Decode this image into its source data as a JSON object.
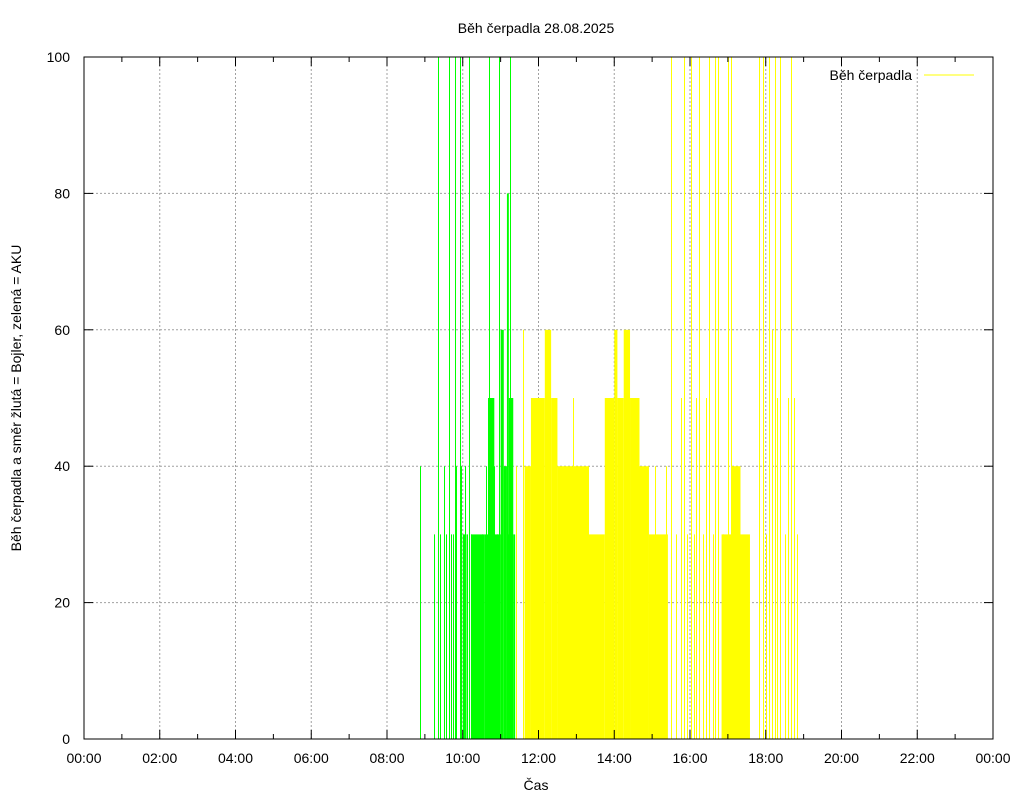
{
  "chart_data": {
    "type": "bar",
    "title": "Běh čerpadla 28.08.2025",
    "xlabel": "Čas",
    "ylabel": "Běh čerpadla a směr žlutá = Bojler, zelená = AKU",
    "xlim": [
      "00:00",
      "24:00"
    ],
    "ylim": [
      0,
      100
    ],
    "x_ticks": [
      "00:00",
      "02:00",
      "04:00",
      "06:00",
      "08:00",
      "10:00",
      "12:00",
      "14:00",
      "16:00",
      "18:00",
      "20:00",
      "22:00",
      "00:00"
    ],
    "y_ticks": [
      "0",
      "20",
      "40",
      "60",
      "80",
      "100"
    ],
    "grid": true,
    "legend": {
      "position": "top-right",
      "entries": [
        {
          "label": "Běh čerpadla",
          "color": "#ffff00"
        }
      ]
    },
    "series": [
      {
        "color": "#00ff00",
        "spikes": [
          [
            "08:53",
            40
          ],
          [
            "09:15",
            30
          ],
          [
            "09:21",
            100
          ],
          [
            "09:24",
            30
          ],
          [
            "09:30",
            40
          ],
          [
            "09:33",
            30
          ],
          [
            "09:38",
            100
          ],
          [
            "09:41",
            30
          ],
          [
            "09:45",
            30
          ],
          [
            "09:47",
            100
          ],
          [
            "09:50",
            40
          ],
          [
            "09:55",
            100
          ],
          [
            "09:58",
            40
          ],
          [
            "10:00",
            30
          ],
          [
            "10:03",
            40
          ],
          [
            "10:06",
            30
          ],
          [
            "10:10",
            100
          ],
          [
            "10:13",
            30
          ],
          [
            "10:31",
            30
          ],
          [
            "10:37",
            40
          ],
          [
            "10:42",
            100
          ],
          [
            "10:44",
            30
          ],
          [
            "10:50",
            40
          ],
          [
            "10:54",
            30
          ],
          [
            "10:58",
            100
          ],
          [
            "11:00",
            30
          ],
          [
            "11:12",
            30
          ],
          [
            "11:15",
            100
          ],
          [
            "11:18",
            50
          ]
        ],
        "blocks": [
          [
            "10:00",
            "10:06",
            30
          ],
          [
            "10:13",
            "10:35",
            30
          ],
          [
            "10:35",
            "10:40",
            30
          ],
          [
            "10:40",
            "10:50",
            50
          ],
          [
            "10:50",
            "11:00",
            30
          ],
          [
            "11:00",
            "11:05",
            60
          ],
          [
            "11:05",
            "11:10",
            40
          ],
          [
            "11:10",
            "11:13",
            80
          ],
          [
            "11:13",
            "11:20",
            50
          ],
          [
            "11:20",
            "11:23",
            30
          ]
        ]
      },
      {
        "color": "#ffff00",
        "spikes": [
          [
            "11:25",
            40
          ],
          [
            "11:35",
            60
          ],
          [
            "11:40",
            30
          ],
          [
            "11:45",
            40
          ],
          [
            "12:55",
            50
          ],
          [
            "13:00",
            40
          ],
          [
            "15:05",
            40
          ],
          [
            "15:22",
            40
          ],
          [
            "15:30",
            100
          ],
          [
            "15:38",
            30
          ],
          [
            "15:45",
            50
          ],
          [
            "15:50",
            100
          ],
          [
            "15:55",
            30
          ],
          [
            "16:02",
            100
          ],
          [
            "16:07",
            30
          ],
          [
            "16:10",
            50
          ],
          [
            "16:15",
            100
          ],
          [
            "16:20",
            30
          ],
          [
            "16:25",
            50
          ],
          [
            "16:30",
            100
          ],
          [
            "16:36",
            30
          ],
          [
            "16:40",
            100
          ],
          [
            "16:45",
            100
          ],
          [
            "16:52",
            30
          ],
          [
            "17:00",
            100
          ],
          [
            "17:05",
            100
          ],
          [
            "17:50",
            100
          ],
          [
            "17:55",
            100
          ],
          [
            "18:00",
            30
          ],
          [
            "18:05",
            100
          ],
          [
            "18:10",
            60
          ],
          [
            "18:14",
            100
          ],
          [
            "18:18",
            50
          ],
          [
            "18:22",
            100
          ],
          [
            "18:30",
            30
          ],
          [
            "18:35",
            50
          ],
          [
            "18:40",
            100
          ],
          [
            "18:45",
            50
          ],
          [
            "18:50",
            30
          ]
        ],
        "blocks": [
          [
            "11:38",
            "11:48",
            40
          ],
          [
            "11:48",
            "12:00",
            50
          ],
          [
            "12:00",
            "12:10",
            50
          ],
          [
            "12:10",
            "12:20",
            60
          ],
          [
            "12:20",
            "12:30",
            50
          ],
          [
            "12:30",
            "13:20",
            40
          ],
          [
            "13:20",
            "13:45",
            30
          ],
          [
            "13:45",
            "14:00",
            50
          ],
          [
            "14:00",
            "14:05",
            60
          ],
          [
            "14:05",
            "14:15",
            50
          ],
          [
            "14:15",
            "14:25",
            60
          ],
          [
            "14:25",
            "14:40",
            50
          ],
          [
            "14:40",
            "14:55",
            40
          ],
          [
            "14:55",
            "15:25",
            30
          ],
          [
            "16:50",
            "17:05",
            30
          ],
          [
            "17:05",
            "17:20",
            40
          ],
          [
            "17:20",
            "17:35",
            30
          ]
        ]
      }
    ]
  }
}
